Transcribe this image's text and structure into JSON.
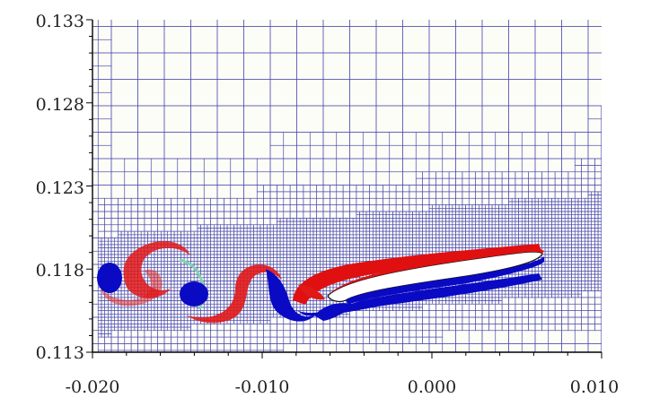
{
  "chart_data": {
    "type": "heatmap",
    "title": "",
    "xlabel": "",
    "ylabel": "",
    "xlim": [
      -0.02,
      0.01
    ],
    "ylim": [
      0.113,
      0.133
    ],
    "xticks": [
      "-0.020",
      "-0.010",
      "0.000",
      "0.010"
    ],
    "yticks": [
      "0.133",
      "0.128",
      "0.123",
      "0.118",
      "0.113"
    ],
    "grid": "adaptive-mesh",
    "colors": {
      "mesh": "#4a4ab0",
      "positive_vorticity": "#e00000",
      "negative_vorticity": "#0000c8",
      "trace": "#7fd3b0",
      "axis": "#000000"
    }
  }
}
